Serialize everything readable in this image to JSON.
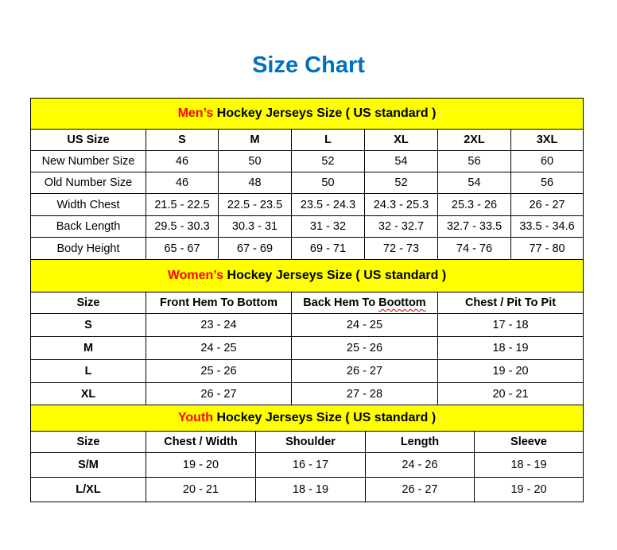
{
  "title": "Size Chart",
  "colors": {
    "title": "#0070C0",
    "band": "#FFFF00",
    "accent": "#FF0000"
  },
  "sections": [
    {
      "id": "men",
      "band_prefix": "Men’s",
      "band_text": " Hockey Jerseys Size ( US standard )",
      "header": [
        "US Size",
        "S",
        "M",
        "L",
        "XL",
        "2XL",
        "3XL"
      ],
      "rows": [
        [
          "New Number Size",
          "46",
          "50",
          "52",
          "54",
          "56",
          "60"
        ],
        [
          "Old Number Size",
          "46",
          "48",
          "50",
          "52",
          "54",
          "56"
        ],
        [
          "Width Chest",
          "21.5 - 22.5",
          "22.5 - 23.5",
          "23.5 - 24.3",
          "24.3 - 25.3",
          "25.3 - 26",
          "26 - 27"
        ],
        [
          "Back Length",
          "29.5 - 30.3",
          "30.3 - 31",
          "31 - 32",
          "32 - 32.7",
          "32.7 - 33.5",
          "33.5 - 34.6"
        ],
        [
          "Body Height",
          "65 - 67",
          "67 - 69",
          "69 - 71",
          "72 - 73",
          "74 - 76",
          "77 - 80"
        ]
      ]
    },
    {
      "id": "women",
      "band_prefix": "Women’s",
      "band_text": " Hockey Jerseys Size ( US standard )",
      "header": [
        "Size",
        "Front Hem To Bottom",
        "Back Hem To Boottom",
        "Chest / Pit To Pit"
      ],
      "rows": [
        [
          "S",
          "23 - 24",
          "24 - 25",
          "17 - 18"
        ],
        [
          "M",
          "24 - 25",
          "25 - 26",
          "18 - 19"
        ],
        [
          "L",
          "25 - 26",
          "26 - 27",
          "19 - 20"
        ],
        [
          "XL",
          "26 - 27",
          "27 - 28",
          "20 - 21"
        ]
      ]
    },
    {
      "id": "youth",
      "band_prefix": "Youth",
      "band_text": " Hockey Jerseys Size ( US standard )",
      "header": [
        "Size",
        "Chest / Width",
        "Shoulder",
        "Length",
        "Sleeve"
      ],
      "rows": [
        [
          "S/M",
          "19 - 20",
          "16 - 17",
          "24 - 26",
          "18 - 19"
        ],
        [
          "L/XL",
          "20 - 21",
          "18 - 19",
          "26 - 27",
          "19 - 20"
        ]
      ]
    }
  ]
}
